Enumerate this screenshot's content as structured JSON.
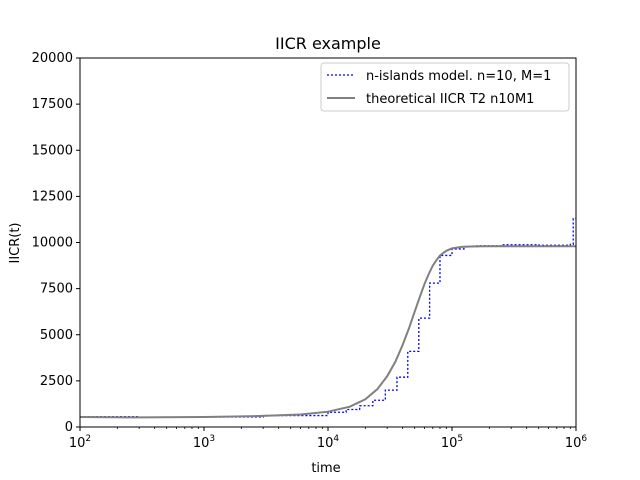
{
  "chart_data": {
    "type": "line",
    "title": "IICR example",
    "xlabel": "time",
    "ylabel": "IICR(t)",
    "xscale": "log",
    "xlim": [
      100,
      1000000
    ],
    "ylim": [
      0,
      20000
    ],
    "grid": false,
    "legend_position": "top-right",
    "x_ticks": [
      {
        "value": 100,
        "base": "10",
        "exp": "2"
      },
      {
        "value": 1000,
        "base": "10",
        "exp": "3"
      },
      {
        "value": 10000,
        "base": "10",
        "exp": "4"
      },
      {
        "value": 100000,
        "base": "10",
        "exp": "5"
      },
      {
        "value": 1000000,
        "base": "10",
        "exp": "6"
      }
    ],
    "y_ticks": [
      {
        "value": 0,
        "label": "0"
      },
      {
        "value": 2500,
        "label": "2500"
      },
      {
        "value": 5000,
        "label": "5000"
      },
      {
        "value": 7500,
        "label": "7500"
      },
      {
        "value": 10000,
        "label": "10000"
      },
      {
        "value": 12500,
        "label": "12500"
      },
      {
        "value": 15000,
        "label": "15000"
      },
      {
        "value": 17500,
        "label": "17500"
      },
      {
        "value": 20000,
        "label": "20000"
      }
    ],
    "series": [
      {
        "name": "n-islands model. n=10, M=1",
        "color": "#0000ff",
        "style": "dotted",
        "drawstyle": "steps-post",
        "x": [
          100,
          300,
          1000,
          3000,
          10000,
          14000,
          18000,
          23000,
          29000,
          36000,
          44000,
          54000,
          66000,
          80000,
          100000,
          125000,
          160000,
          250000,
          500000,
          900000,
          950000,
          1000000
        ],
        "y": [
          560,
          520,
          540,
          620,
          800,
          950,
          1150,
          1450,
          2000,
          2700,
          4100,
          5900,
          7800,
          9300,
          9650,
          9780,
          9820,
          9880,
          9850,
          9900,
          11300,
          11300
        ]
      },
      {
        "name": "theoretical IICR T2 n10M1",
        "color": "#808080",
        "style": "solid",
        "x": [
          100,
          300,
          1000,
          3000,
          6000,
          10000,
          15000,
          20000,
          25000,
          30000,
          35000,
          40000,
          45000,
          50000,
          55000,
          60000,
          65000,
          70000,
          75000,
          80000,
          90000,
          100000,
          120000,
          150000,
          200000,
          500000,
          1000000
        ],
        "y": [
          540,
          520,
          540,
          600,
          680,
          830,
          1100,
          1500,
          2050,
          2750,
          3550,
          4450,
          5350,
          6250,
          7050,
          7750,
          8300,
          8750,
          9050,
          9300,
          9550,
          9680,
          9760,
          9790,
          9800,
          9800,
          9800
        ]
      }
    ]
  }
}
